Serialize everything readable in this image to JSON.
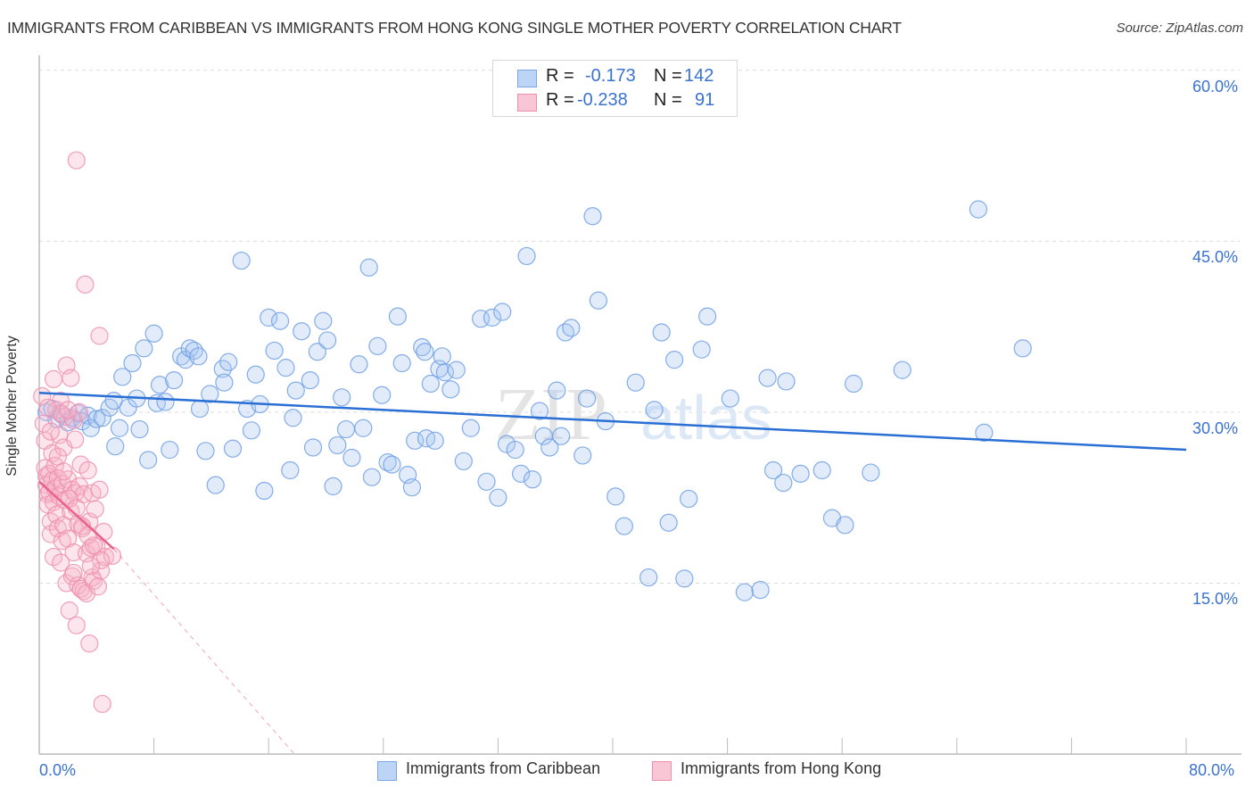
{
  "header": {
    "title": "IMMIGRANTS FROM CARIBBEAN VS IMMIGRANTS FROM HONG KONG SINGLE MOTHER POVERTY CORRELATION CHART",
    "source": "Source: ZipAtlas.com"
  },
  "legend": {
    "rows": [
      {
        "r_label": "R =",
        "r_value": "-0.173",
        "n_label": "N =",
        "n_value": "142"
      },
      {
        "r_label": "R =",
        "r_value": "-0.238",
        "n_label": "N =",
        "n_value": "91"
      }
    ]
  },
  "bottom_legend": [
    "Immigrants from Caribbean",
    "Immigrants from Hong Kong"
  ],
  "watermark": {
    "zip": "ZIP",
    "atlas": "atlas"
  },
  "chart_data": {
    "type": "scatter",
    "title": "IMMIGRANTS FROM CARIBBEAN VS IMMIGRANTS FROM HONG KONG SINGLE MOTHER POVERTY CORRELATION CHART",
    "xlabel": "",
    "ylabel": "Single Mother Poverty",
    "xlim": [
      0,
      80
    ],
    "ylim": [
      0,
      62
    ],
    "x_tick_labels": [
      "0.0%",
      "80.0%"
    ],
    "y_ticks": [
      15,
      30,
      45,
      60
    ],
    "y_tick_labels": [
      "15.0%",
      "30.0%",
      "45.0%",
      "60.0%"
    ],
    "grid": true,
    "legend_position": "top-center",
    "colors": {
      "caribbean": "#6fa0e6",
      "hongkong": "#f08fae",
      "caribbean_line": "#2a6fd4",
      "hongkong_line": "#e8628d"
    },
    "series": [
      {
        "name": "Immigrants from Caribbean",
        "stats": {
          "R": -0.173,
          "N": 142
        },
        "trend": {
          "x": [
            0,
            80
          ],
          "y": [
            31.7,
            26.7
          ]
        },
        "points": [
          [
            0.5,
            30.0
          ],
          [
            0.9,
            30.3
          ],
          [
            1.2,
            29.4
          ],
          [
            1.6,
            29.8
          ],
          [
            2.0,
            29.1
          ],
          [
            2.3,
            29.5
          ],
          [
            2.7,
            29.9
          ],
          [
            3.0,
            29.2
          ],
          [
            3.4,
            29.7
          ],
          [
            3.6,
            28.6
          ],
          [
            4.0,
            29.4
          ],
          [
            4.4,
            29.5
          ],
          [
            4.9,
            30.4
          ],
          [
            5.2,
            31.0
          ],
          [
            5.3,
            27.0
          ],
          [
            5.6,
            28.6
          ],
          [
            5.8,
            33.1
          ],
          [
            6.2,
            30.4
          ],
          [
            6.5,
            34.3
          ],
          [
            6.8,
            31.2
          ],
          [
            7.0,
            28.5
          ],
          [
            7.3,
            35.6
          ],
          [
            7.6,
            25.8
          ],
          [
            8.0,
            36.9
          ],
          [
            8.2,
            30.8
          ],
          [
            8.4,
            32.4
          ],
          [
            8.8,
            30.9
          ],
          [
            9.1,
            26.7
          ],
          [
            9.4,
            32.8
          ],
          [
            9.9,
            34.9
          ],
          [
            10.2,
            34.6
          ],
          [
            10.5,
            35.6
          ],
          [
            10.8,
            35.4
          ],
          [
            11.1,
            34.9
          ],
          [
            11.2,
            30.3
          ],
          [
            11.6,
            26.6
          ],
          [
            11.9,
            31.6
          ],
          [
            12.3,
            23.6
          ],
          [
            12.8,
            33.8
          ],
          [
            12.9,
            32.6
          ],
          [
            13.2,
            34.4
          ],
          [
            13.5,
            26.8
          ],
          [
            14.1,
            43.3
          ],
          [
            14.5,
            30.3
          ],
          [
            14.8,
            28.4
          ],
          [
            15.1,
            33.3
          ],
          [
            15.4,
            30.7
          ],
          [
            15.7,
            23.1
          ],
          [
            16.0,
            38.3
          ],
          [
            16.4,
            35.4
          ],
          [
            16.8,
            38.0
          ],
          [
            17.2,
            33.9
          ],
          [
            17.5,
            24.9
          ],
          [
            17.7,
            29.5
          ],
          [
            17.9,
            31.9
          ],
          [
            18.3,
            37.1
          ],
          [
            18.9,
            32.8
          ],
          [
            19.1,
            26.9
          ],
          [
            19.4,
            35.3
          ],
          [
            19.8,
            38.0
          ],
          [
            20.1,
            36.3
          ],
          [
            20.5,
            23.5
          ],
          [
            20.8,
            27.1
          ],
          [
            21.1,
            31.3
          ],
          [
            21.4,
            28.5
          ],
          [
            21.8,
            26.0
          ],
          [
            22.3,
            34.2
          ],
          [
            22.6,
            28.6
          ],
          [
            23.0,
            42.7
          ],
          [
            23.2,
            24.3
          ],
          [
            23.6,
            35.8
          ],
          [
            23.9,
            31.5
          ],
          [
            24.3,
            25.6
          ],
          [
            24.6,
            25.4
          ],
          [
            25.0,
            38.4
          ],
          [
            25.3,
            34.3
          ],
          [
            25.7,
            24.5
          ],
          [
            26.0,
            23.4
          ],
          [
            26.2,
            27.5
          ],
          [
            26.7,
            35.7
          ],
          [
            26.9,
            35.3
          ],
          [
            27.0,
            27.7
          ],
          [
            27.3,
            32.5
          ],
          [
            27.6,
            27.5
          ],
          [
            27.9,
            33.8
          ],
          [
            28.1,
            34.9
          ],
          [
            28.3,
            33.5
          ],
          [
            28.7,
            32.0
          ],
          [
            29.1,
            33.7
          ],
          [
            29.6,
            25.7
          ],
          [
            30.1,
            28.6
          ],
          [
            30.8,
            38.2
          ],
          [
            31.2,
            23.9
          ],
          [
            31.6,
            38.3
          ],
          [
            32.0,
            22.5
          ],
          [
            32.3,
            38.8
          ],
          [
            32.6,
            27.2
          ],
          [
            33.2,
            26.7
          ],
          [
            33.6,
            24.6
          ],
          [
            34.0,
            43.7
          ],
          [
            34.4,
            24.1
          ],
          [
            34.9,
            30.1
          ],
          [
            35.2,
            27.9
          ],
          [
            35.6,
            26.9
          ],
          [
            36.1,
            31.9
          ],
          [
            36.4,
            27.9
          ],
          [
            36.7,
            37.0
          ],
          [
            37.1,
            37.4
          ],
          [
            37.9,
            26.2
          ],
          [
            38.2,
            31.2
          ],
          [
            38.6,
            47.2
          ],
          [
            39.0,
            39.8
          ],
          [
            39.5,
            29.2
          ],
          [
            40.2,
            22.6
          ],
          [
            40.8,
            20.0
          ],
          [
            41.6,
            32.6
          ],
          [
            42.5,
            15.5
          ],
          [
            42.9,
            30.2
          ],
          [
            43.4,
            37.0
          ],
          [
            43.9,
            20.3
          ],
          [
            44.3,
            34.6
          ],
          [
            45.0,
            15.4
          ],
          [
            45.3,
            22.4
          ],
          [
            46.2,
            35.5
          ],
          [
            46.6,
            38.4
          ],
          [
            48.2,
            31.2
          ],
          [
            49.2,
            14.2
          ],
          [
            50.3,
            14.4
          ],
          [
            50.8,
            33.0
          ],
          [
            51.2,
            24.9
          ],
          [
            51.9,
            23.8
          ],
          [
            52.1,
            32.7
          ],
          [
            53.1,
            24.6
          ],
          [
            54.6,
            24.9
          ],
          [
            55.3,
            20.7
          ],
          [
            56.2,
            20.1
          ],
          [
            56.8,
            32.5
          ],
          [
            58.0,
            24.7
          ],
          [
            60.2,
            33.7
          ],
          [
            65.5,
            47.8
          ],
          [
            65.9,
            28.2
          ],
          [
            68.6,
            35.6
          ]
        ]
      },
      {
        "name": "Immigrants from Hong Kong",
        "stats": {
          "R": -0.238,
          "N": 91
        },
        "trend": {
          "x": [
            0,
            5.2
          ],
          "y": [
            23.9,
            18.0
          ]
        },
        "trend_extended": {
          "x": [
            5.2,
            17.8
          ],
          "y": [
            18.0,
            0
          ]
        },
        "points": [
          [
            0.2,
            31.4
          ],
          [
            0.3,
            29.0
          ],
          [
            0.4,
            27.5
          ],
          [
            0.4,
            25.1
          ],
          [
            0.5,
            24.4
          ],
          [
            0.5,
            23.6
          ],
          [
            0.6,
            22.8
          ],
          [
            0.6,
            21.9
          ],
          [
            0.7,
            24.6
          ],
          [
            0.7,
            23.0
          ],
          [
            0.8,
            20.4
          ],
          [
            0.8,
            19.3
          ],
          [
            0.9,
            26.4
          ],
          [
            0.9,
            24.0
          ],
          [
            1.0,
            22.1
          ],
          [
            1.0,
            17.3
          ],
          [
            1.1,
            25.3
          ],
          [
            1.1,
            23.3
          ],
          [
            1.2,
            30.2
          ],
          [
            1.2,
            21.0
          ],
          [
            1.3,
            24.2
          ],
          [
            1.3,
            19.8
          ],
          [
            1.4,
            28.0
          ],
          [
            1.4,
            22.6
          ],
          [
            1.5,
            31.0
          ],
          [
            1.5,
            16.8
          ],
          [
            1.6,
            23.7
          ],
          [
            1.6,
            18.7
          ],
          [
            1.7,
            26.9
          ],
          [
            1.7,
            20.1
          ],
          [
            1.8,
            29.6
          ],
          [
            1.8,
            22.3
          ],
          [
            1.9,
            15.0
          ],
          [
            1.9,
            34.1
          ],
          [
            2.0,
            24.1
          ],
          [
            2.0,
            18.9
          ],
          [
            2.1,
            12.6
          ],
          [
            2.2,
            33.0
          ],
          [
            2.2,
            21.3
          ],
          [
            2.3,
            23.2
          ],
          [
            2.3,
            15.6
          ],
          [
            2.4,
            29.3
          ],
          [
            2.4,
            17.7
          ],
          [
            2.5,
            27.6
          ],
          [
            2.5,
            22.9
          ],
          [
            2.6,
            11.3
          ],
          [
            2.7,
            20.2
          ],
          [
            2.7,
            14.8
          ],
          [
            2.8,
            30.0
          ],
          [
            2.8,
            23.5
          ],
          [
            2.9,
            25.4
          ],
          [
            2.9,
            14.5
          ],
          [
            3.0,
            19.8
          ],
          [
            3.1,
            22.8
          ],
          [
            3.1,
            14.3
          ],
          [
            3.2,
            41.2
          ],
          [
            3.3,
            17.6
          ],
          [
            3.3,
            14.1
          ],
          [
            3.4,
            24.9
          ],
          [
            3.5,
            20.4
          ],
          [
            3.5,
            9.7
          ],
          [
            3.6,
            18.1
          ],
          [
            3.7,
            22.9
          ],
          [
            3.7,
            15.5
          ],
          [
            3.8,
            15.2
          ],
          [
            3.9,
            21.5
          ],
          [
            4.0,
            18.2
          ],
          [
            4.1,
            14.7
          ],
          [
            4.2,
            36.7
          ],
          [
            4.2,
            23.2
          ],
          [
            4.3,
            16.1
          ],
          [
            4.4,
            4.4
          ],
          [
            4.5,
            19.5
          ],
          [
            4.6,
            17.3
          ],
          [
            5.1,
            17.4
          ],
          [
            2.6,
            52.1
          ],
          [
            1.0,
            32.9
          ],
          [
            1.5,
            29.9
          ],
          [
            2.0,
            30.2
          ],
          [
            0.6,
            30.4
          ],
          [
            0.8,
            28.3
          ],
          [
            1.3,
            26.1
          ],
          [
            1.7,
            24.8
          ],
          [
            2.1,
            22.4
          ],
          [
            2.6,
            21.6
          ],
          [
            3.0,
            20.0
          ],
          [
            3.4,
            19.2
          ],
          [
            3.8,
            18.3
          ],
          [
            4.3,
            17.0
          ],
          [
            2.4,
            15.9
          ],
          [
            3.6,
            16.5
          ]
        ]
      }
    ]
  }
}
